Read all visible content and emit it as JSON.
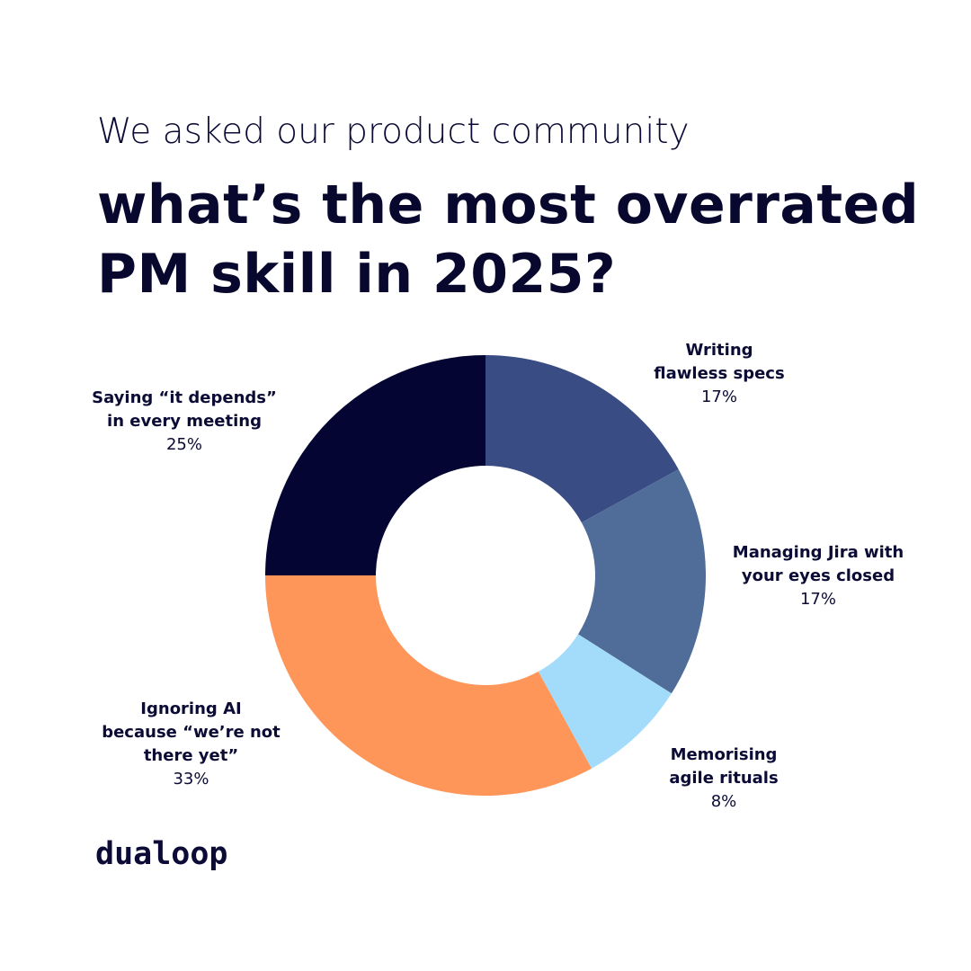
{
  "header": {
    "subtitle": "We asked our product community",
    "title_line1": "what’s the most overrated",
    "title_line2": "PM skill in 2025?"
  },
  "chart_data": {
    "type": "pie",
    "variant": "donut",
    "slices": [
      {
        "label": "Writing flawless specs",
        "label_lines": "Writing\nflawless specs",
        "value": 17,
        "value_label": "17%",
        "color": "#3a4c84"
      },
      {
        "label": "Managing Jira with your eyes closed",
        "label_lines": "Managing Jira with\nyour eyes closed",
        "value": 17,
        "value_label": "17%",
        "color": "#4f6d98"
      },
      {
        "label": "Memorising agile rituals",
        "label_lines": "Memorising\nagile rituals",
        "value": 8,
        "value_label": "8%",
        "color": "#a3dcfb"
      },
      {
        "label": "Ignoring AI because “we’re not there yet”",
        "label_lines": "Ignoring AI\nbecause “we’re not\nthere yet”",
        "value": 33,
        "value_label": "33%",
        "color": "#fe9659"
      },
      {
        "label": "Saying “it depends” in every meeting",
        "label_lines": "Saying “it depends”\nin every meeting",
        "value": 25,
        "value_label": "25%",
        "color": "#050533"
      }
    ]
  },
  "brand": {
    "logo_text": "dualoop"
  }
}
